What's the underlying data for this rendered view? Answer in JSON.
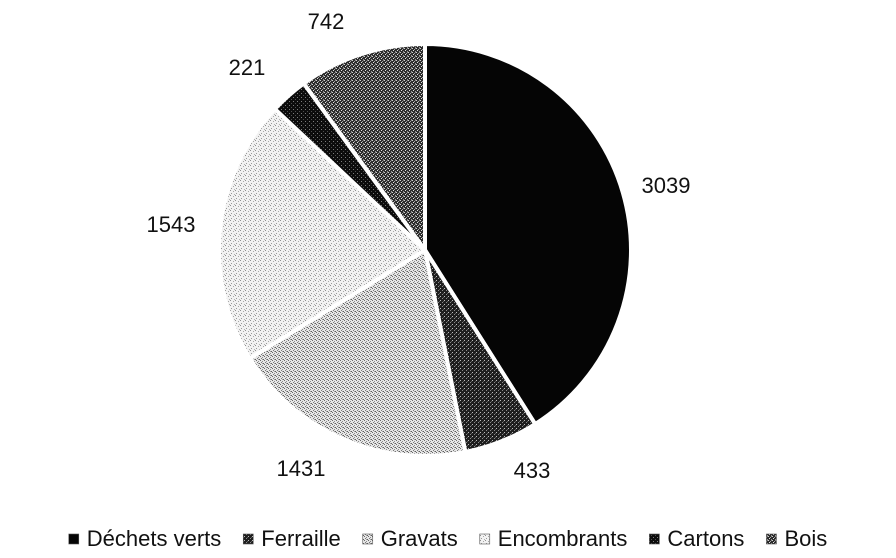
{
  "chart_data": {
    "type": "pie",
    "title": "",
    "start_angle_deg": 0,
    "direction": "clockwise",
    "legend_position": "bottom",
    "slices": [
      {
        "name": "Déchets verts",
        "value": 3039,
        "label": "3039",
        "color": "#050505",
        "pattern": "solid"
      },
      {
        "name": "Ferraille",
        "value": 433,
        "label": "433",
        "color": "#3a3a3a",
        "pattern": "dense-stipple"
      },
      {
        "name": "Gravats",
        "value": 1431,
        "label": "1431",
        "color": "#b5b5b5",
        "pattern": "fine-stipple"
      },
      {
        "name": "Encombrants",
        "value": 1543,
        "label": "1543",
        "color": "#d9d9d9",
        "pattern": "light-stipple"
      },
      {
        "name": "Cartons",
        "value": 221,
        "label": "221",
        "color": "#161616",
        "pattern": "very-dense-stipple"
      },
      {
        "name": "Bois",
        "value": 742,
        "label": "742",
        "color": "#4a4a4a",
        "pattern": "medium-stipple"
      }
    ]
  }
}
